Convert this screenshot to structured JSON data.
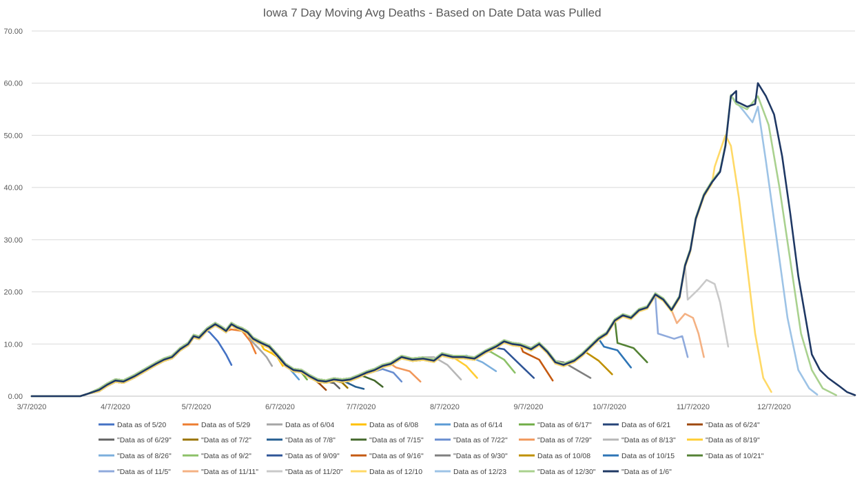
{
  "chart_data": {
    "type": "line",
    "title": "Iowa 7 Day Moving Avg Deaths - Based on Date Data was Pulled",
    "xlabel": "",
    "ylabel": "",
    "ylim": [
      0,
      70
    ],
    "yticks": [
      "0.00",
      "10.00",
      "20.00",
      "30.00",
      "40.00",
      "50.00",
      "60.00",
      "70.00"
    ],
    "xlim": [
      "2020-03-07",
      "2021-01-06"
    ],
    "xticks": [
      {
        "date": "2020-03-07",
        "label": "3/7/2020"
      },
      {
        "date": "2020-04-07",
        "label": "4/7/2020"
      },
      {
        "date": "2020-05-07",
        "label": "5/7/2020"
      },
      {
        "date": "2020-06-07",
        "label": "6/7/2020"
      },
      {
        "date": "2020-07-07",
        "label": "7/7/2020"
      },
      {
        "date": "2020-08-07",
        "label": "8/7/2020"
      },
      {
        "date": "2020-09-07",
        "label": "9/7/2020"
      },
      {
        "date": "2020-10-07",
        "label": "10/7/2020"
      },
      {
        "date": "2020-11-07",
        "label": "11/7/2020"
      },
      {
        "date": "2020-12-07",
        "label": "12/7/2020"
      }
    ],
    "grid": true,
    "legend_position": "bottom",
    "series": [
      {
        "name": "Data as of 5/20",
        "color": "#4472c4",
        "tail": [
          [
            "2020-05-12",
            12.2
          ],
          [
            "2020-05-15",
            10.5
          ],
          [
            "2020-05-18",
            8.0
          ],
          [
            "2020-05-20",
            6.0
          ]
        ]
      },
      {
        "name": "Data as of 5/29",
        "color": "#ed7d31",
        "tail": [
          [
            "2020-05-20",
            12.8
          ],
          [
            "2020-05-24",
            12.5
          ],
          [
            "2020-05-27",
            10.5
          ],
          [
            "2020-05-29",
            8.2
          ]
        ]
      },
      {
        "name": "Data as of 6/04",
        "color": "#a5a5a5",
        "tail": [
          [
            "2020-05-27",
            10.8
          ],
          [
            "2020-05-30",
            9.2
          ],
          [
            "2020-06-02",
            7.5
          ],
          [
            "2020-06-04",
            5.8
          ]
        ]
      },
      {
        "name": "Data as of 6/08",
        "color": "#ffc000",
        "tail": [
          [
            "2020-06-01",
            9.0
          ],
          [
            "2020-06-04",
            8.2
          ],
          [
            "2020-06-06",
            7.5
          ],
          [
            "2020-06-08",
            5.8
          ]
        ]
      },
      {
        "name": "Data as of 6/14",
        "color": "#5b9bd5",
        "tail": [
          [
            "2020-06-08",
            6.5
          ],
          [
            "2020-06-11",
            5.0
          ],
          [
            "2020-06-14",
            3.2
          ]
        ]
      },
      {
        "name": "\"Data as of 6/17\"",
        "color": "#70ad47",
        "tail": [
          [
            "2020-06-12",
            5.2
          ],
          [
            "2020-06-15",
            4.5
          ],
          [
            "2020-06-17",
            3.2
          ]
        ]
      },
      {
        "name": "Data as of 6/21",
        "color": "#264478",
        "tail": []
      },
      {
        "name": "\"Data as of 6/24\"",
        "color": "#9e480e",
        "tail": [
          [
            "2020-06-19",
            3.5
          ],
          [
            "2020-06-22",
            2.2
          ],
          [
            "2020-06-24",
            1.2
          ]
        ]
      },
      {
        "name": "\"Data as of 6/29\"",
        "color": "#636363",
        "tail": [
          [
            "2020-06-24",
            2.8
          ],
          [
            "2020-06-27",
            2.5
          ],
          [
            "2020-06-29",
            1.5
          ]
        ]
      },
      {
        "name": "\"Data as of 7/2\"",
        "color": "#997300",
        "tail": [
          [
            "2020-06-27",
            3.0
          ],
          [
            "2020-06-30",
            2.6
          ],
          [
            "2020-07-02",
            1.6
          ]
        ]
      },
      {
        "name": "\"Data as of 7/8\"",
        "color": "#255e91",
        "tail": [
          [
            "2020-07-01",
            2.8
          ],
          [
            "2020-07-05",
            1.8
          ],
          [
            "2020-07-08",
            1.4
          ]
        ]
      },
      {
        "name": "\"Data as of 7/15\"",
        "color": "#43682b",
        "tail": [
          [
            "2020-07-08",
            3.8
          ],
          [
            "2020-07-12",
            3.0
          ],
          [
            "2020-07-15",
            1.8
          ]
        ]
      },
      {
        "name": "\"Data as of 7/22\"",
        "color": "#698ed0",
        "tail": [
          [
            "2020-07-15",
            5.2
          ],
          [
            "2020-07-19",
            4.5
          ],
          [
            "2020-07-22",
            2.8
          ]
        ]
      },
      {
        "name": "\"Data as of 7/29\"",
        "color": "#f1975a",
        "tail": [
          [
            "2020-07-20",
            5.5
          ],
          [
            "2020-07-25",
            4.8
          ],
          [
            "2020-07-29",
            2.8
          ]
        ]
      },
      {
        "name": "\"Data as of 8/13\"",
        "color": "#b7b7b7",
        "tail": [
          [
            "2020-08-03",
            7.5
          ],
          [
            "2020-08-08",
            6.0
          ],
          [
            "2020-08-13",
            3.2
          ]
        ]
      },
      {
        "name": "\"Data as of 8/19\"",
        "color": "#ffcd33",
        "tail": [
          [
            "2020-08-10",
            7.5
          ],
          [
            "2020-08-15",
            5.8
          ],
          [
            "2020-08-19",
            3.5
          ]
        ]
      },
      {
        "name": "\"Data as of 8/26\"",
        "color": "#7cafdd",
        "tail": [
          [
            "2020-08-15",
            7.8
          ],
          [
            "2020-08-21",
            6.5
          ],
          [
            "2020-08-26",
            4.8
          ]
        ]
      },
      {
        "name": "\"Data as of 9/2\"",
        "color": "#8cc168",
        "tail": [
          [
            "2020-08-24",
            8.5
          ],
          [
            "2020-08-29",
            7.0
          ],
          [
            "2020-09-02",
            4.5
          ]
        ]
      },
      {
        "name": "\"Data as of 9/09\"",
        "color": "#2f5597",
        "tail": [
          [
            "2020-08-29",
            9.0
          ],
          [
            "2020-09-03",
            6.5
          ],
          [
            "2020-09-09",
            3.5
          ]
        ]
      },
      {
        "name": "\"Data as of 9/16\"",
        "color": "#c55a11",
        "tail": [
          [
            "2020-09-05",
            8.5
          ],
          [
            "2020-09-11",
            7.0
          ],
          [
            "2020-09-16",
            3.0
          ]
        ]
      },
      {
        "name": "\"Data as of 9/30\"",
        "color": "#7f7f7f",
        "tail": [
          [
            "2020-09-20",
            6.5
          ],
          [
            "2020-09-25",
            5.0
          ],
          [
            "2020-09-30",
            3.5
          ]
        ]
      },
      {
        "name": "Data as of 10/08",
        "color": "#bf9000",
        "tail": [
          [
            "2020-09-28",
            8.5
          ],
          [
            "2020-10-03",
            6.8
          ],
          [
            "2020-10-08",
            4.2
          ]
        ]
      },
      {
        "name": "Data as of 10/15",
        "color": "#2e75b6",
        "tail": [
          [
            "2020-10-05",
            9.5
          ],
          [
            "2020-10-10",
            8.8
          ],
          [
            "2020-10-15",
            5.5
          ]
        ]
      },
      {
        "name": "\"Data as of 10/21\"",
        "color": "#548235",
        "tail": [
          [
            "2020-10-10",
            10.2
          ],
          [
            "2020-10-16",
            9.2
          ],
          [
            "2020-10-21",
            6.5
          ]
        ]
      },
      {
        "name": "\"Data as of 11/5\"",
        "color": "#8faadc",
        "tail": [
          [
            "2020-10-25",
            12.0
          ],
          [
            "2020-10-31",
            11.0
          ],
          [
            "2020-11-03",
            11.5
          ],
          [
            "2020-11-05",
            7.5
          ]
        ]
      },
      {
        "name": "\"Data as of 11/11\"",
        "color": "#f4b183",
        "tail": [
          [
            "2020-11-01",
            14.0
          ],
          [
            "2020-11-04",
            15.8
          ],
          [
            "2020-11-07",
            15.0
          ],
          [
            "2020-11-09",
            12.0
          ],
          [
            "2020-11-11",
            7.5
          ]
        ]
      },
      {
        "name": "\"Data as of 11/20\"",
        "color": "#c9c9c9",
        "tail": [
          [
            "2020-11-05",
            18.5
          ],
          [
            "2020-11-09",
            20.5
          ],
          [
            "2020-11-12",
            22.3
          ],
          [
            "2020-11-15",
            21.5
          ],
          [
            "2020-11-17",
            18.0
          ],
          [
            "2020-11-20",
            9.5
          ]
        ]
      },
      {
        "name": "Data as of 12/10",
        "color": "#ffd966",
        "tail": [
          [
            "2020-11-15",
            44.0
          ],
          [
            "2020-11-19",
            50.0
          ],
          [
            "2020-11-21",
            48.0
          ],
          [
            "2020-11-24",
            38.0
          ],
          [
            "2020-11-27",
            25.0
          ],
          [
            "2020-11-30",
            12.0
          ],
          [
            "2020-12-03",
            3.5
          ],
          [
            "2020-12-06",
            0.8
          ]
        ]
      },
      {
        "name": "Data as of 12/23",
        "color": "#9dc3e6",
        "tail": [
          [
            "2020-11-22",
            57.0
          ],
          [
            "2020-11-26",
            54.5
          ],
          [
            "2020-11-29",
            52.5
          ],
          [
            "2020-12-01",
            55.5
          ],
          [
            "2020-12-04",
            45.0
          ],
          [
            "2020-12-08",
            30.0
          ],
          [
            "2020-12-12",
            15.0
          ],
          [
            "2020-12-16",
            5.0
          ],
          [
            "2020-12-20",
            1.5
          ],
          [
            "2020-12-23",
            0.3
          ]
        ]
      },
      {
        "name": "\"Data as of 12/30\"",
        "color": "#a9d18e",
        "tail": [
          [
            "2020-11-23",
            56.0
          ],
          [
            "2020-11-27",
            55.0
          ],
          [
            "2020-12-01",
            57.5
          ],
          [
            "2020-12-05",
            52.0
          ],
          [
            "2020-12-09",
            40.0
          ],
          [
            "2020-12-13",
            26.0
          ],
          [
            "2020-12-17",
            12.0
          ],
          [
            "2020-12-21",
            5.0
          ],
          [
            "2020-12-25",
            1.5
          ],
          [
            "2020-12-30",
            0.2
          ]
        ]
      },
      {
        "name": "\"Data as of 1/6\"",
        "color": "#1f3864",
        "tail": [
          [
            "2020-11-23",
            56.5
          ],
          [
            "2020-11-27",
            55.5
          ],
          [
            "2020-11-30",
            56.0
          ],
          [
            "2020-12-01",
            60.0
          ],
          [
            "2020-12-04",
            57.5
          ],
          [
            "2020-12-07",
            54.0
          ],
          [
            "2020-12-10",
            46.0
          ],
          [
            "2020-12-13",
            35.0
          ],
          [
            "2020-12-16",
            23.0
          ],
          [
            "2020-12-19",
            14.0
          ],
          [
            "2020-12-21",
            8.0
          ],
          [
            "2020-12-24",
            5.0
          ],
          [
            "2020-12-27",
            3.5
          ],
          [
            "2020-12-31",
            2.0
          ],
          [
            "2021-01-03",
            0.8
          ],
          [
            "2021-01-06",
            0.2
          ]
        ]
      }
    ],
    "baseline": [
      [
        "2020-03-07",
        0.0
      ],
      [
        "2020-03-25",
        0.0
      ],
      [
        "2020-03-28",
        0.5
      ],
      [
        "2020-04-01",
        1.2
      ],
      [
        "2020-04-04",
        2.2
      ],
      [
        "2020-04-07",
        3.0
      ],
      [
        "2020-04-10",
        2.8
      ],
      [
        "2020-04-14",
        3.8
      ],
      [
        "2020-04-18",
        5.0
      ],
      [
        "2020-04-22",
        6.2
      ],
      [
        "2020-04-25",
        7.0
      ],
      [
        "2020-04-28",
        7.5
      ],
      [
        "2020-05-01",
        9.0
      ],
      [
        "2020-05-04",
        10.0
      ],
      [
        "2020-05-06",
        11.5
      ],
      [
        "2020-05-08",
        11.2
      ],
      [
        "2020-05-11",
        12.8
      ],
      [
        "2020-05-14",
        13.8
      ],
      [
        "2020-05-16",
        13.2
      ],
      [
        "2020-05-18",
        12.5
      ],
      [
        "2020-05-20",
        13.8
      ],
      [
        "2020-05-22",
        13.2
      ],
      [
        "2020-05-24",
        12.8
      ],
      [
        "2020-05-26",
        12.2
      ],
      [
        "2020-05-28",
        11.0
      ],
      [
        "2020-05-31",
        10.2
      ],
      [
        "2020-06-03",
        9.5
      ],
      [
        "2020-06-06",
        7.8
      ],
      [
        "2020-06-09",
        6.0
      ],
      [
        "2020-06-12",
        5.0
      ],
      [
        "2020-06-15",
        4.8
      ],
      [
        "2020-06-18",
        3.8
      ],
      [
        "2020-06-21",
        3.0
      ],
      [
        "2020-06-24",
        2.8
      ],
      [
        "2020-06-27",
        3.2
      ],
      [
        "2020-06-30",
        3.0
      ],
      [
        "2020-07-03",
        3.2
      ],
      [
        "2020-07-06",
        3.8
      ],
      [
        "2020-07-09",
        4.5
      ],
      [
        "2020-07-12",
        5.0
      ],
      [
        "2020-07-15",
        5.8
      ],
      [
        "2020-07-18",
        6.2
      ],
      [
        "2020-07-22",
        7.5
      ],
      [
        "2020-07-26",
        7.0
      ],
      [
        "2020-07-30",
        7.2
      ],
      [
        "2020-08-03",
        6.8
      ],
      [
        "2020-08-06",
        8.0
      ],
      [
        "2020-08-10",
        7.5
      ],
      [
        "2020-08-14",
        7.5
      ],
      [
        "2020-08-18",
        7.2
      ],
      [
        "2020-08-22",
        8.5
      ],
      [
        "2020-08-26",
        9.5
      ],
      [
        "2020-08-29",
        10.5
      ],
      [
        "2020-09-01",
        10.0
      ],
      [
        "2020-09-04",
        9.8
      ],
      [
        "2020-09-08",
        9.0
      ],
      [
        "2020-09-11",
        10.0
      ],
      [
        "2020-09-14",
        8.5
      ],
      [
        "2020-09-17",
        6.5
      ],
      [
        "2020-09-20",
        6.0
      ],
      [
        "2020-09-24",
        6.8
      ],
      [
        "2020-09-27",
        8.0
      ],
      [
        "2020-09-30",
        9.5
      ],
      [
        "2020-10-03",
        11.0
      ],
      [
        "2020-10-06",
        12.0
      ],
      [
        "2020-10-09",
        14.5
      ],
      [
        "2020-10-12",
        15.5
      ],
      [
        "2020-10-15",
        15.0
      ],
      [
        "2020-10-18",
        16.5
      ],
      [
        "2020-10-21",
        17.0
      ],
      [
        "2020-10-24",
        19.5
      ],
      [
        "2020-10-27",
        18.5
      ],
      [
        "2020-10-30",
        16.5
      ],
      [
        "2020-11-02",
        19.0
      ],
      [
        "2020-11-04",
        25.0
      ],
      [
        "2020-11-06",
        28.0
      ],
      [
        "2020-11-08",
        34.0
      ],
      [
        "2020-11-11",
        38.5
      ],
      [
        "2020-11-14",
        41.0
      ],
      [
        "2020-11-17",
        43.0
      ],
      [
        "2020-11-19",
        48.0
      ],
      [
        "2020-11-21",
        57.5
      ],
      [
        "2020-11-23",
        58.5
      ]
    ]
  }
}
